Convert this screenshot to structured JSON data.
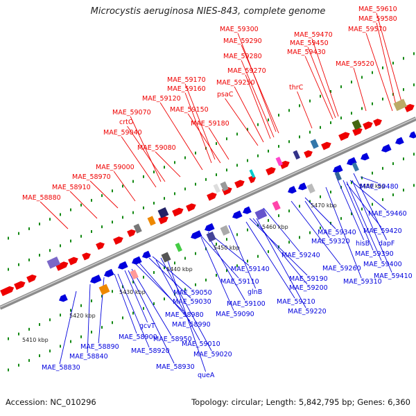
{
  "title": "Microcystis aeruginosa NIES-843, complete genome",
  "footer": {
    "accession": "Accession: NC_010296",
    "summary": "Topology: circular; Length: 5,842,795 bp; Genes: 6,360"
  },
  "colors": {
    "forward": "#ee0000",
    "reverse": "#0000dd",
    "backbone": "#8c8c8c",
    "tick": "#118811"
  },
  "kbp_ticks": [
    "5410 kbp",
    "5420 kbp",
    "5430 kbp",
    "5440 kbp",
    "5450 kbp",
    "5460 kbp",
    "5470 kbp",
    "5480 kbp"
  ],
  "forward_labels": [
    "MAE_59610",
    "MAE_59580",
    "MAE_59570",
    "MAE_59300",
    "MAE_59290",
    "MAE_59470",
    "MAE_59450",
    "MAE_59430",
    "MAE_59280",
    "MAE_59520",
    "MAE_59270",
    "MAE_59170",
    "MAE_59250",
    "thrC",
    "MAE_59160",
    "psaC",
    "MAE_59120",
    "MAE_59150",
    "MAE_59070",
    "crtO",
    "MAE_59180",
    "MAE_59040",
    "MAE_59080",
    "MAE_59000",
    "MAE_58970",
    "MAE_58910",
    "MAE_58880"
  ],
  "reverse_labels": [
    "MAE_59480",
    "MAE_59460",
    "MAE_59420",
    "MAE_59340",
    "hisB",
    "dapF",
    "MAE_59320",
    "MAE_59390",
    "MAE_59400",
    "MAE_59410",
    "MAE_59240",
    "MAE_59260",
    "MAE_59310",
    "MAE_59140",
    "MAE_59190",
    "MAE_59110",
    "glnB",
    "MAE_59200",
    "MAE_59210",
    "MAE_59050",
    "MAE_59100",
    "MAE_59220",
    "MAE_59030",
    "MAE_59090",
    "MAE_58980",
    "MAE_58990",
    "gcvT",
    "MAE_58900",
    "MAE_58950",
    "MAE_58890",
    "MAE_59010",
    "MAE_58840",
    "MAE_58920",
    "MAE_59020",
    "MAE_58830",
    "MAE_58930",
    "queA"
  ]
}
